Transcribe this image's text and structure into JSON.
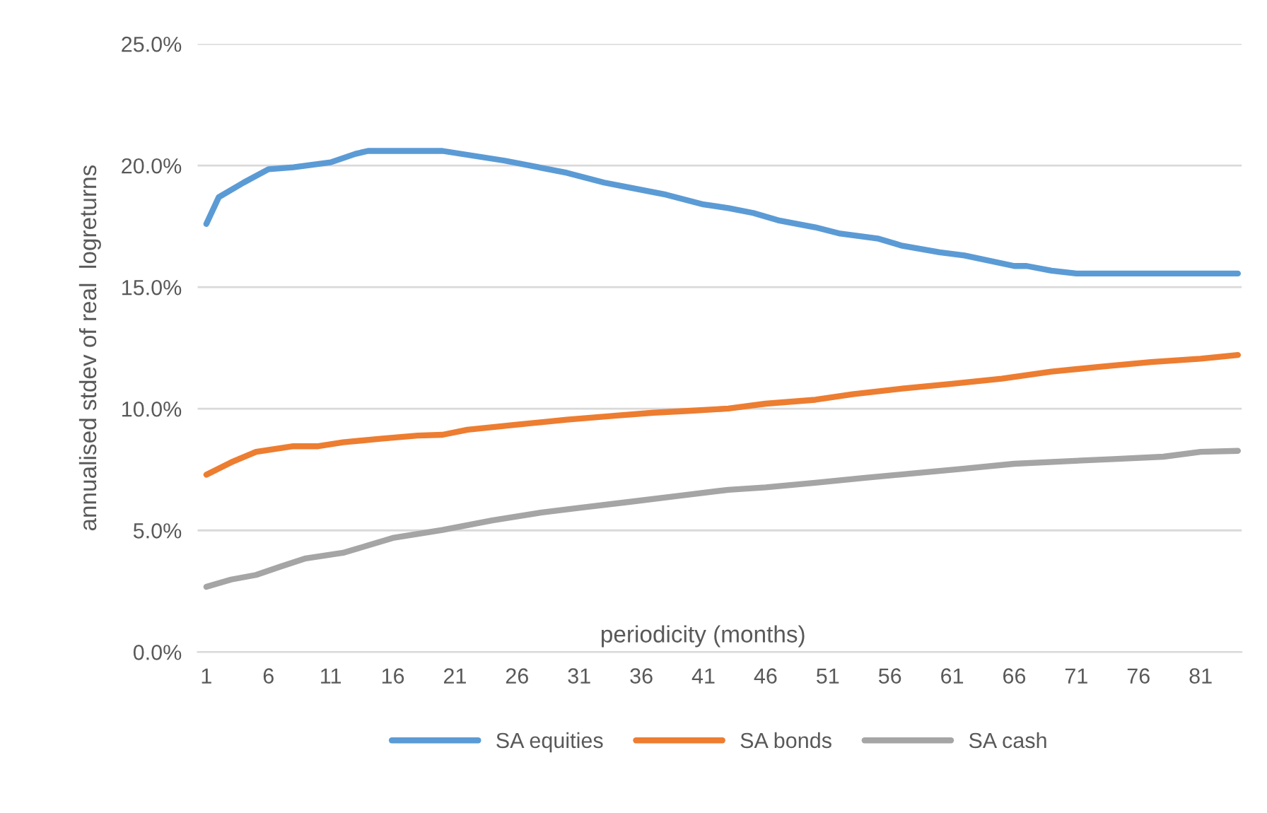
{
  "chart_data": {
    "type": "line",
    "xlabel": "periodicity (months)",
    "ylabel": "annualised stdev of real  logreturns",
    "xlim": [
      0.3,
      84.3
    ],
    "xticks": [
      1,
      6,
      11,
      16,
      21,
      26,
      31,
      36,
      41,
      46,
      51,
      56,
      61,
      66,
      71,
      76,
      81
    ],
    "ylim": [
      0,
      25
    ],
    "yticks": [
      {
        "value": 0,
        "label": "0.0%"
      },
      {
        "value": 5,
        "label": "5.0%"
      },
      {
        "value": 10,
        "label": "10.0%"
      },
      {
        "value": 15,
        "label": "15.0%"
      },
      {
        "value": 20,
        "label": "20.0%"
      },
      {
        "value": 25,
        "label": "25.0%"
      }
    ],
    "grid": "y",
    "legend": "bottom",
    "line_style": "solid",
    "marker": "none",
    "series": [
      {
        "name": "SA equities",
        "color": "#5b9bd5",
        "x": [
          1,
          2,
          4,
          6,
          8,
          11,
          13,
          14,
          20,
          25,
          30,
          33,
          35,
          38,
          41,
          43,
          45,
          47,
          50,
          52,
          55,
          57,
          60,
          62,
          66,
          67,
          69,
          71,
          84
        ],
        "values": [
          17.6,
          18.7,
          19.3,
          19.85,
          19.93,
          20.13,
          20.48,
          20.6,
          20.6,
          20.2,
          19.7,
          19.3,
          19.1,
          18.8,
          18.4,
          18.25,
          18.05,
          17.75,
          17.46,
          17.2,
          17.0,
          16.7,
          16.43,
          16.3,
          15.87,
          15.87,
          15.68,
          15.56,
          15.56
        ]
      },
      {
        "name": "SA bonds",
        "color": "#ed7d31",
        "x": [
          1,
          3,
          5,
          8,
          10,
          12,
          15,
          18,
          20,
          22,
          26,
          30,
          34,
          37,
          40,
          43,
          46,
          50,
          53,
          57,
          61,
          65,
          69,
          73,
          77,
          81,
          84
        ],
        "values": [
          7.29,
          7.8,
          8.23,
          8.46,
          8.46,
          8.62,
          8.77,
          8.9,
          8.93,
          9.14,
          9.35,
          9.55,
          9.72,
          9.84,
          9.92,
          10.01,
          10.21,
          10.37,
          10.6,
          10.83,
          11.03,
          11.24,
          11.53,
          11.73,
          11.92,
          12.06,
          12.21
        ]
      },
      {
        "name": "SA cash",
        "color": "#a5a5a5",
        "x": [
          1,
          3,
          5,
          7,
          9,
          12,
          14,
          16,
          20,
          24,
          28,
          31,
          35,
          39,
          43,
          46,
          50,
          54,
          58,
          62,
          66,
          70,
          74,
          78,
          81,
          84
        ],
        "values": [
          2.68,
          2.98,
          3.17,
          3.52,
          3.85,
          4.08,
          4.38,
          4.69,
          5.02,
          5.41,
          5.74,
          5.93,
          6.17,
          6.42,
          6.67,
          6.77,
          6.96,
          7.16,
          7.35,
          7.54,
          7.74,
          7.84,
          7.93,
          8.03,
          8.23,
          8.27
        ]
      }
    ]
  }
}
